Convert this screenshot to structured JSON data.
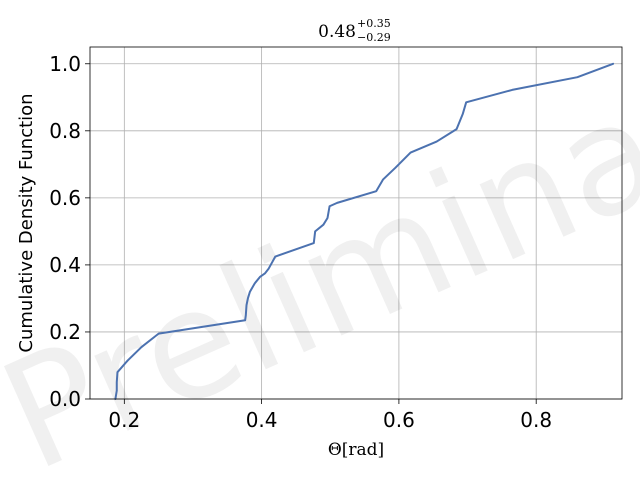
{
  "chart_data": {
    "type": "line",
    "title": {
      "value": "0.48",
      "upper": "+0.35",
      "lower": "−0.29"
    },
    "xlabel": "Θ[rad]",
    "ylabel": "Cumulative Density Function",
    "xlim": [
      0.15,
      0.925
    ],
    "ylim": [
      0.0,
      1.05
    ],
    "xticks": [
      0.2,
      0.4,
      0.6,
      0.8
    ],
    "xtick_labels": [
      "0.2",
      "0.4",
      "0.6",
      "0.8"
    ],
    "yticks": [
      0.0,
      0.2,
      0.4,
      0.6,
      0.8,
      1.0
    ],
    "ytick_labels": [
      "0.0",
      "0.2",
      "0.4",
      "0.6",
      "0.8",
      "1.0"
    ],
    "grid": true,
    "watermark": "Preliminary",
    "series": [
      {
        "color": "#4c72b0",
        "x": [
          0.187,
          0.189,
          0.189,
          0.19,
          0.205,
          0.225,
          0.25,
          0.376,
          0.377,
          0.378,
          0.38,
          0.383,
          0.39,
          0.398,
          0.405,
          0.41,
          0.42,
          0.476,
          0.478,
          0.49,
          0.496,
          0.499,
          0.51,
          0.567,
          0.577,
          0.595,
          0.617,
          0.655,
          0.684,
          0.687,
          0.693,
          0.698,
          0.765,
          0.86,
          0.912
        ],
        "y": [
          0.0,
          0.025,
          0.05,
          0.08,
          0.115,
          0.155,
          0.195,
          0.235,
          0.25,
          0.28,
          0.3,
          0.32,
          0.345,
          0.365,
          0.375,
          0.388,
          0.425,
          0.465,
          0.5,
          0.52,
          0.54,
          0.575,
          0.585,
          0.62,
          0.655,
          0.69,
          0.735,
          0.768,
          0.805,
          0.82,
          0.85,
          0.885,
          0.922,
          0.96,
          1.0
        ]
      }
    ]
  }
}
